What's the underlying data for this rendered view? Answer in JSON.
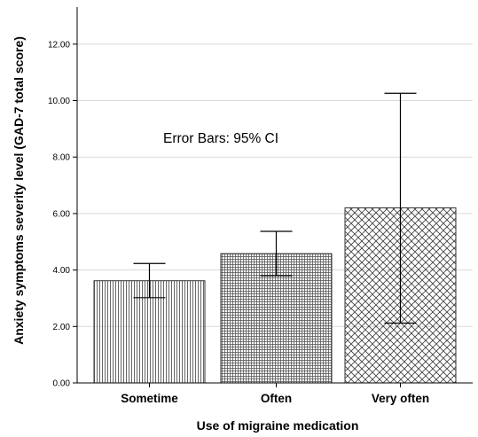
{
  "chart_data": {
    "type": "bar",
    "categories": [
      "Sometime",
      "Often",
      "Very often"
    ],
    "values": [
      3.62,
      4.58,
      6.2
    ],
    "error_bars": {
      "type": "95% CI",
      "lower": [
        3.02,
        3.8,
        2.12
      ],
      "upper": [
        4.23,
        5.37,
        10.26
      ]
    },
    "patterns": [
      "vertical-lines",
      "grid",
      "crosshatch"
    ],
    "title": "",
    "xlabel": "Use of migraine medication",
    "ylabel": "Anxiety symptoms severity level (GAD-7 total score)",
    "ylim": [
      0,
      13.3
    ],
    "yticks": [
      0,
      2,
      4,
      6,
      8,
      10,
      12
    ],
    "ytick_labels": [
      "0.00",
      "2.00",
      "4.00",
      "6.00",
      "8.00",
      "10.00",
      "12.00"
    ],
    "annotation": "Error Bars: 95% CI",
    "grid": true,
    "colors": {
      "bar_fill": "#ffffff",
      "pattern": "#555555",
      "grid": "#d9d9d9",
      "axis": "#000000"
    }
  }
}
